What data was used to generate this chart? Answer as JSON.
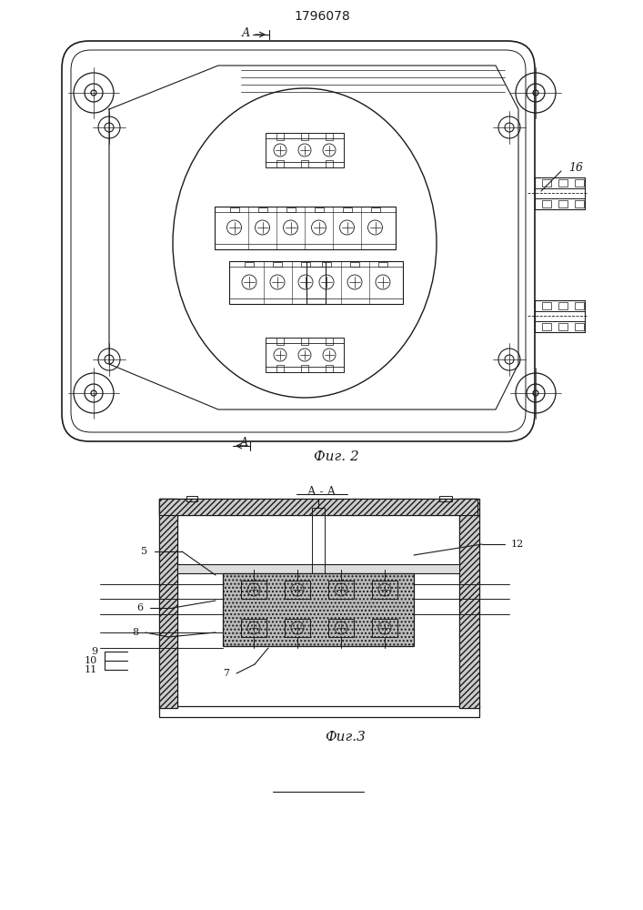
{
  "title": "1796078",
  "title_fontsize": 10,
  "fig_width": 7.07,
  "fig_height": 10.0,
  "bg_color": "#ffffff",
  "line_color": "#1a1a1a",
  "fig2_label": "Фиг. 2",
  "fig3_label": "Фиг.3",
  "section_label": "А - А",
  "arrow_label_top": "А",
  "arrow_label_bottom": "А",
  "label_16": "16",
  "labels_fig3": [
    "5",
    "6",
    "8",
    "9",
    "10",
    "11",
    "7",
    "12"
  ]
}
